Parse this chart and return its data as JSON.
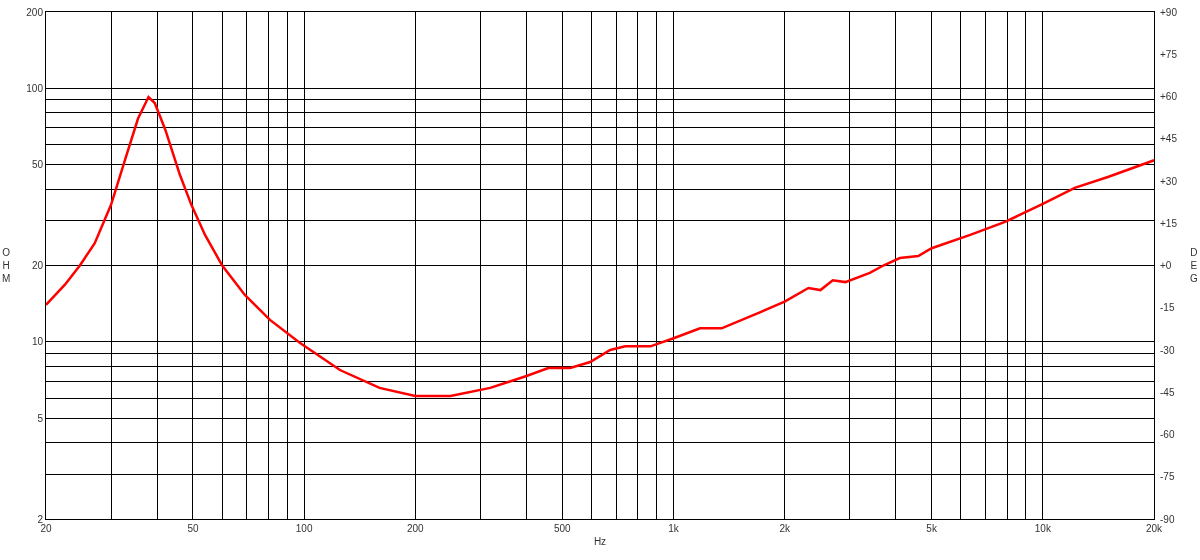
{
  "chart_data": {
    "type": "line",
    "xlabel": "Hz",
    "ylabel": "OHM",
    "y2label": "DEG",
    "log": "xy",
    "grid": true,
    "marker": "none",
    "line_style": "solid",
    "x": [
      20,
      22.5,
      24.7,
      27.1,
      30,
      32.7,
      35.5,
      37.9,
      39.4,
      42.1,
      46.1,
      49.5,
      53.9,
      60,
      69.1,
      80.8,
      97.5,
      125,
      160,
      200,
      249,
      319,
      400,
      458,
      525,
      595,
      674,
      740,
      866,
      1005,
      1180,
      1350,
      1720,
      2000,
      2320,
      2500,
      2700,
      2920,
      3400,
      3700,
      4100,
      4600,
      5000,
      6360,
      7900,
      10000,
      12200,
      15000,
      20000
    ],
    "series": [
      {
        "color": "#ff0000",
        "values": [
          14.0,
          16.8,
          20,
          24.5,
          34.7,
          52,
          76,
          92.4,
          87.5,
          68.5,
          45.5,
          34.7,
          26.4,
          20,
          15.3,
          12.2,
          9.9,
          7.74,
          6.58,
          6.11,
          6.11,
          6.58,
          7.33,
          7.88,
          7.88,
          8.32,
          9.28,
          9.6,
          9.6,
          10.35,
          11.3,
          11.3,
          13.1,
          14.4,
          16.3,
          16.0,
          17.5,
          17.2,
          18.7,
          20,
          21.4,
          21.8,
          23.4,
          26.4,
          29.7,
          35,
          40.5,
          44.7,
          52
        ]
      }
    ],
    "xlim": [
      20,
      20000
    ],
    "xticks": [
      20,
      {
        "value": 30,
        "label": null
      },
      {
        "value": 40,
        "label": null
      },
      50,
      {
        "value": 60,
        "label": null
      },
      {
        "value": 70,
        "label": null
      },
      {
        "value": 80,
        "label": null
      },
      {
        "value": 90,
        "label": null
      },
      100,
      200,
      {
        "value": 300,
        "label": null
      },
      {
        "value": 400,
        "label": null
      },
      500,
      {
        "value": 600,
        "label": null
      },
      {
        "value": 700,
        "label": null
      },
      {
        "value": 800,
        "label": null
      },
      {
        "value": 900,
        "label": null
      },
      {
        "value": 1000,
        "label": "1k"
      },
      {
        "value": 2000,
        "label": "2k"
      },
      {
        "value": 3000,
        "label": null
      },
      {
        "value": 4000,
        "label": null
      },
      {
        "value": 5000,
        "label": "5k"
      },
      {
        "value": 6000,
        "label": null
      },
      {
        "value": 7000,
        "label": null
      },
      {
        "value": 8000,
        "label": null
      },
      {
        "value": 9000,
        "label": null
      },
      {
        "value": 10000,
        "label": "10k"
      },
      {
        "value": 20000,
        "label": "20k"
      }
    ],
    "ylim": [
      2,
      200
    ],
    "yticks": [
      2,
      {
        "value": 3,
        "label": null
      },
      {
        "value": 4,
        "label": null
      },
      5,
      {
        "value": 6,
        "label": null
      },
      {
        "value": 7,
        "label": null
      },
      {
        "value": 8,
        "label": null
      },
      {
        "value": 9,
        "label": null
      },
      10,
      20,
      {
        "value": 30,
        "label": null
      },
      {
        "value": 40,
        "label": null
      },
      50,
      {
        "value": 60,
        "label": null
      },
      {
        "value": 70,
        "label": null
      },
      {
        "value": 80,
        "label": null
      },
      {
        "value": 90,
        "label": null
      },
      100,
      200
    ],
    "y2lim": [
      -90,
      90
    ],
    "y2ticks": [
      {
        "value": -90,
        "label": "-90"
      },
      {
        "value": -75,
        "label": "-75"
      },
      {
        "value": -60,
        "label": "-60"
      },
      {
        "value": -45,
        "label": "-45"
      },
      {
        "value": -30,
        "label": "-30"
      },
      {
        "value": -15,
        "label": "-15"
      },
      {
        "value": 0,
        "label": "+0"
      },
      {
        "value": 15,
        "label": "+15"
      },
      {
        "value": 30,
        "label": "+30"
      },
      {
        "value": 45,
        "label": "+45"
      },
      {
        "value": 60,
        "label": "+60"
      },
      {
        "value": 75,
        "label": "+75"
      },
      {
        "value": 90,
        "label": "+90"
      }
    ]
  }
}
